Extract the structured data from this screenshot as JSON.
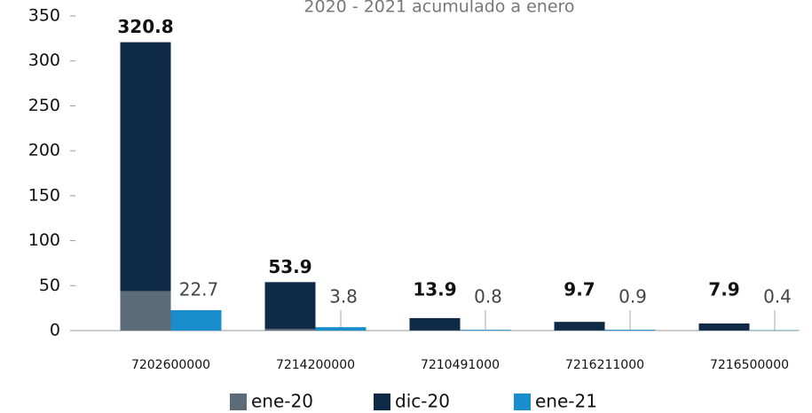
{
  "chart_data": {
    "type": "bar",
    "title": "2020 - 2021 acumulado a enero",
    "categories": [
      "7202600000",
      "7214200000",
      "7210491000",
      "7216211000",
      "7216500000"
    ],
    "series": [
      {
        "name": "ene-20",
        "color": "#5b6b78",
        "values": [
          44,
          2,
          0.3,
          0.3,
          0.2
        ]
      },
      {
        "name": "dic-20",
        "color": "#0f2a47",
        "values": [
          320.8,
          53.9,
          13.9,
          9.7,
          7.9
        ]
      },
      {
        "name": "ene-21",
        "color": "#1a8dcc",
        "values": [
          22.7,
          3.8,
          0.8,
          0.9,
          0.4
        ]
      }
    ],
    "ylim": [
      0,
      350
    ],
    "yticks": [
      0,
      50,
      100,
      150,
      200,
      250,
      300,
      350
    ],
    "grid": false
  }
}
